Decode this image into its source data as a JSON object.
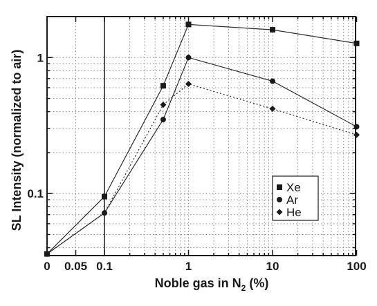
{
  "chart_data": {
    "type": "line",
    "title": "",
    "xlabel": "Noble gas in N",
    "xlabel_subscript": "2",
    "xlabel_suffix": " (%)",
    "ylabel": "SL Intensity (normalized to air)",
    "x_scale": "linear 0 to 0.1, log 0.1 to 100",
    "y_scale": "log",
    "xlim": [
      0,
      100
    ],
    "ylim": [
      0.035,
      2.0
    ],
    "grid": "dotted",
    "legend_position": "lower-right",
    "x_tick_labels": [
      "0",
      "0.05",
      "0.1",
      "1",
      "10",
      "100"
    ],
    "y_tick_labels": [
      "0.1",
      "1"
    ],
    "series": [
      {
        "name": "Xe",
        "marker": "square",
        "line_style": "solid",
        "x": [
          0,
          0.1,
          0.5,
          1,
          10,
          100
        ],
        "y": [
          0.036,
          0.095,
          0.62,
          1.75,
          1.6,
          1.27
        ]
      },
      {
        "name": "Ar",
        "marker": "circle",
        "line_style": "solid",
        "x": [
          0,
          0.1,
          0.5,
          1,
          10,
          100
        ],
        "y": [
          0.036,
          0.072,
          0.35,
          1.0,
          0.67,
          0.31
        ]
      },
      {
        "name": "He",
        "marker": "diamond",
        "line_style": "dotted",
        "x": [
          0,
          0.1,
          0.5,
          1,
          10,
          100
        ],
        "y": [
          0.036,
          0.072,
          0.45,
          0.64,
          0.42,
          0.27
        ]
      }
    ]
  }
}
